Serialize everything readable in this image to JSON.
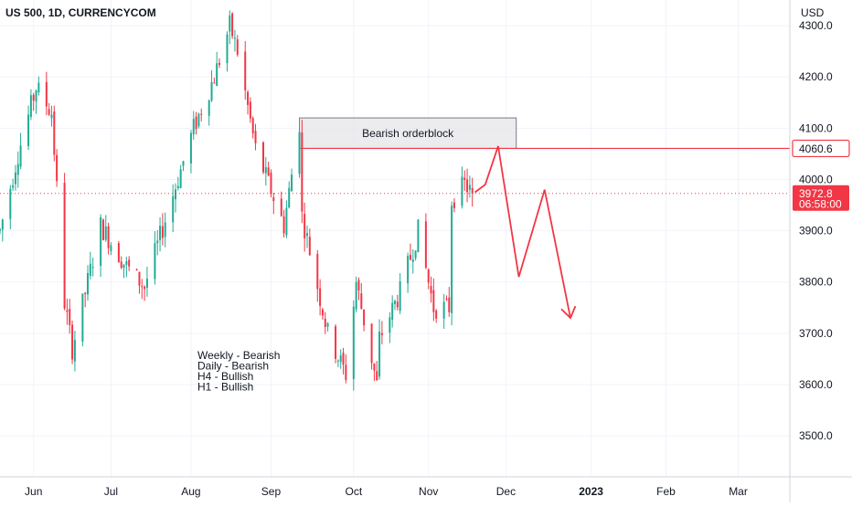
{
  "header": {
    "symbol_title": "US 500, 1D, CURRENCYCOM",
    "currency": "USD"
  },
  "colors": {
    "up": "#22ab94",
    "down": "#f23645",
    "arrow": "#f23645",
    "grid": "#f0f3fa",
    "axis_text": "#131722",
    "level_line": "#f23645",
    "orderblock_fill": "#e6e6e9",
    "orderblock_stroke": "#787b86"
  },
  "chart_data": {
    "type": "candlestick",
    "title": "US 500, 1D, CURRENCYCOM",
    "ylabel": "USD",
    "y_range": [
      3420,
      4350
    ],
    "x_range": [
      "2022-05-19",
      "2023-03-21"
    ],
    "y_ticks": [
      "4300.0",
      "4200.0",
      "4100.0",
      "4000.0",
      "3900.0",
      "3800.0",
      "3700.0",
      "3600.0",
      "3500.0"
    ],
    "y_tick_values": [
      4300,
      4200,
      4100,
      4000,
      3900,
      3800,
      3700,
      3600,
      3500
    ],
    "x_ticks": [
      {
        "label": "Jun",
        "date": "2022-06-01",
        "bold": false
      },
      {
        "label": "Jul",
        "date": "2022-07-01",
        "bold": false
      },
      {
        "label": "Aug",
        "date": "2022-08-01",
        "bold": false
      },
      {
        "label": "Sep",
        "date": "2022-09-01",
        "bold": false
      },
      {
        "label": "Oct",
        "date": "2022-10-03",
        "bold": false
      },
      {
        "label": "Nov",
        "date": "2022-11-01",
        "bold": false
      },
      {
        "label": "Dec",
        "date": "2022-12-01",
        "bold": false
      },
      {
        "label": "2023",
        "date": "2023-01-03",
        "bold": true
      },
      {
        "label": "Feb",
        "date": "2023-02-01",
        "bold": false
      },
      {
        "label": "Mar",
        "date": "2023-03-01",
        "bold": false
      }
    ],
    "trend_points": [
      {
        "date": "2022-05-19",
        "close": 3900
      },
      {
        "date": "2022-05-26",
        "close": 4050
      },
      {
        "date": "2022-06-02",
        "close": 4180
      },
      {
        "date": "2022-06-08",
        "close": 4130
      },
      {
        "date": "2022-06-13",
        "close": 3760
      },
      {
        "date": "2022-06-16",
        "close": 3670
      },
      {
        "date": "2022-06-27",
        "close": 3910
      },
      {
        "date": "2022-07-07",
        "close": 3830
      },
      {
        "date": "2022-07-14",
        "close": 3790
      },
      {
        "date": "2022-07-25",
        "close": 3970
      },
      {
        "date": "2022-08-02",
        "close": 4100
      },
      {
        "date": "2022-08-10",
        "close": 4200
      },
      {
        "date": "2022-08-16",
        "close": 4300
      },
      {
        "date": "2022-08-19",
        "close": 4250
      },
      {
        "date": "2022-08-26",
        "close": 4060
      },
      {
        "date": "2022-09-06",
        "close": 3910
      },
      {
        "date": "2022-09-12",
        "close": 4110
      },
      {
        "date": "2022-09-13",
        "close": 3930
      },
      {
        "date": "2022-09-23",
        "close": 3700
      },
      {
        "date": "2022-09-30",
        "close": 3620
      },
      {
        "date": "2022-10-04",
        "close": 3800
      },
      {
        "date": "2022-10-12",
        "close": 3600
      },
      {
        "date": "2022-10-13",
        "close": 3690
      },
      {
        "date": "2022-10-21",
        "close": 3780
      },
      {
        "date": "2022-10-28",
        "close": 3900
      },
      {
        "date": "2022-11-03",
        "close": 3750
      },
      {
        "date": "2022-11-09",
        "close": 3750
      },
      {
        "date": "2022-11-10",
        "close": 3960
      },
      {
        "date": "2022-11-15",
        "close": 3990
      },
      {
        "date": "2022-11-18",
        "close": 3972.8
      }
    ],
    "current_price": {
      "label": "3972.8",
      "value": 3972.8,
      "countdown": "06:58:00"
    },
    "level_line": {
      "label": "4060.6",
      "value": 4060.6,
      "from_date": "2022-09-13"
    },
    "orderblock": {
      "label": "Bearish orderblock",
      "date_from": "2022-09-12",
      "date_to": "2022-12-05",
      "price_low": 4060.6,
      "price_high": 4120
    },
    "projection_path": [
      {
        "date": "2022-11-19",
        "price": 3975
      },
      {
        "date": "2022-11-23",
        "price": 3990
      },
      {
        "date": "2022-11-28",
        "price": 4065
      },
      {
        "date": "2022-12-06",
        "price": 3810
      },
      {
        "date": "2022-12-16",
        "price": 3980
      },
      {
        "date": "2022-12-26",
        "price": 3730
      }
    ],
    "annotation_lines": [
      "Weekly - Bearish",
      "Daily - Bearish",
      "H4 - Bullish",
      "H1 - Bullish"
    ]
  }
}
